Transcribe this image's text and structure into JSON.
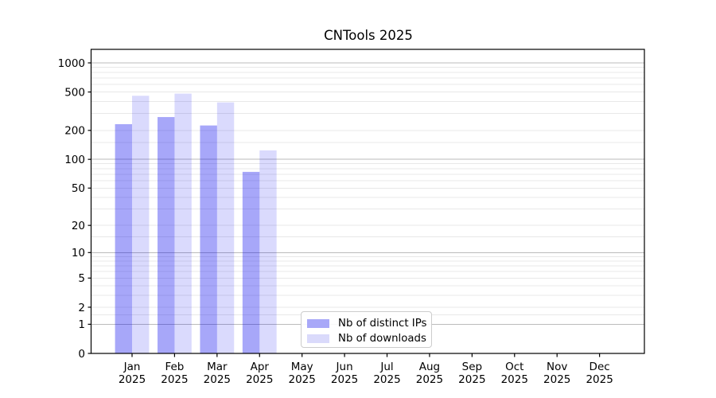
{
  "chart_data": {
    "type": "bar",
    "title": "CNTools 2025",
    "xlabel": "",
    "ylabel": "",
    "year": "2025",
    "categories": [
      "Jan",
      "Feb",
      "Mar",
      "Apr",
      "May",
      "Jun",
      "Jul",
      "Aug",
      "Sep",
      "Oct",
      "Nov",
      "Dec"
    ],
    "series": [
      {
        "key": "distinct-ips",
        "name": "Nb of distinct IPs",
        "fill": "rgba(0,0,238,0.345)",
        "legend_color": "#a8a8f8",
        "values": [
          232,
          275,
          225,
          74,
          0,
          0,
          0,
          0,
          0,
          0,
          0,
          0
        ]
      },
      {
        "key": "downloads",
        "name": "Nb of downloads",
        "fill": "rgba(0,0,238,0.145)",
        "legend_color": "#dadafb",
        "values": [
          457,
          481,
          390,
          124,
          0,
          0,
          0,
          0,
          0,
          0,
          0,
          0
        ]
      }
    ],
    "yscale": "log1p",
    "yticks": [
      0,
      1,
      2,
      5,
      10,
      20,
      50,
      100,
      200,
      500,
      1000
    ],
    "ylim": [
      0,
      1380
    ],
    "grid": {
      "on": true,
      "major_color": "#bbbbbb",
      "minor_color": "#e8e8e8",
      "minor_subs": [
        1.5,
        2,
        3,
        4,
        5,
        6,
        7,
        8,
        9
      ],
      "major_lines": [
        1,
        10,
        100,
        1000
      ]
    },
    "legend_position": "lower center",
    "spine_color": "#000000",
    "text_color": "#000000",
    "background_color": "#ffffff"
  }
}
